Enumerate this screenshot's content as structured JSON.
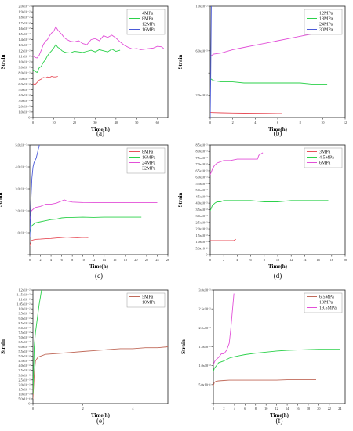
{
  "chart_data": [
    {
      "type": "line",
      "caption": "(a)",
      "xlabel": "Time(h)",
      "ylabel": "Strain",
      "xlim": [
        0,
        65
      ],
      "ylim": [
        0,
        0.02
      ],
      "xticks": [
        "0",
        "10",
        "20",
        "30",
        "40",
        "50",
        "60"
      ],
      "yticks": [
        "0",
        "1.0x10⁻³",
        "2.0x10⁻³",
        "3.0x10⁻³",
        "4.0x10⁻³",
        "5.0x10⁻³",
        "6.0x10⁻³",
        "7.0x10⁻³",
        "8.0x10⁻³",
        "9.0x10⁻³",
        "1.0x10⁻²",
        "1.1x10⁻²",
        "1.2x10⁻²",
        "1.3x10⁻²",
        "1.4x10⁻²",
        "1.5x10⁻²",
        "1.6x10⁻²",
        "1.7x10⁻²",
        "1.8x10⁻²",
        "1.9x10⁻²",
        "2.0x10⁻²"
      ],
      "legend_position": "top-right",
      "series": [
        {
          "name": "4MPa",
          "color": "#e8505b",
          "x": [
            0,
            1,
            2,
            3,
            4,
            5,
            6,
            7,
            8,
            9,
            10,
            11,
            12
          ],
          "y": [
            0.0061,
            0.0059,
            0.0063,
            0.0067,
            0.0069,
            0.0072,
            0.0071,
            0.0073,
            0.0072,
            0.0074,
            0.0073,
            0.0073,
            0.0074
          ]
        },
        {
          "name": "8MPa",
          "color": "#2bd14a",
          "x": [
            0,
            1,
            2,
            3,
            4,
            5,
            6,
            7,
            8,
            9,
            10,
            11,
            12,
            13,
            14,
            15,
            16,
            18,
            20,
            22,
            24,
            26,
            28,
            30,
            32,
            34,
            36,
            38,
            40,
            42
          ],
          "y": [
            0.0086,
            0.0083,
            0.0081,
            0.0089,
            0.0092,
            0.0099,
            0.0104,
            0.0111,
            0.0116,
            0.012,
            0.0125,
            0.0131,
            0.0126,
            0.0124,
            0.012,
            0.0118,
            0.0117,
            0.0116,
            0.0119,
            0.0118,
            0.0117,
            0.0119,
            0.0121,
            0.0118,
            0.0122,
            0.012,
            0.0118,
            0.0123,
            0.0119,
            0.0121
          ]
        },
        {
          "name": "12MPa",
          "color": "#e24fd8",
          "x": [
            0,
            1,
            2,
            3,
            4,
            5,
            6,
            7,
            8,
            9,
            10,
            11,
            12,
            13,
            14,
            15,
            16,
            18,
            20,
            22,
            24,
            26,
            28,
            30,
            32,
            34,
            36,
            38,
            40,
            42,
            44,
            46,
            48,
            50,
            52,
            54,
            56,
            58,
            60,
            62,
            63
          ],
          "y": [
            0.0112,
            0.0108,
            0.0107,
            0.0112,
            0.0121,
            0.0131,
            0.0137,
            0.014,
            0.0147,
            0.0152,
            0.0155,
            0.0163,
            0.0157,
            0.0153,
            0.0149,
            0.0144,
            0.0141,
            0.0137,
            0.0136,
            0.0138,
            0.0133,
            0.0131,
            0.014,
            0.0142,
            0.0138,
            0.0147,
            0.0144,
            0.0148,
            0.0143,
            0.0136,
            0.013,
            0.0126,
            0.0123,
            0.0124,
            0.0122,
            0.0123,
            0.0124,
            0.0125,
            0.0128,
            0.0127,
            0.0124
          ]
        },
        {
          "name": "16MPa",
          "color": "#4a5ad8",
          "x": [],
          "y": []
        }
      ]
    },
    {
      "type": "line",
      "caption": "(b)",
      "xlabel": "Time(h)",
      "ylabel": "Strain",
      "xlim": [
        0,
        12
      ],
      "ylim": [
        0,
        0.01
      ],
      "xticks": [
        "0",
        "2",
        "4",
        "6",
        "8",
        "10",
        "12"
      ],
      "yticks": [
        "",
        "2.0x10⁻³",
        "",
        "6.0x10⁻³",
        "1.0x10⁻²"
      ],
      "ytick_values": [
        0,
        0.002,
        0.004,
        0.006,
        0.01
      ],
      "legend_position": "top-right",
      "series": [
        {
          "name": "12MPa",
          "color": "#e8505b",
          "x": [
            0,
            1,
            2,
            3,
            4,
            5,
            6,
            6.4
          ],
          "y": [
            0.00045,
            0.00042,
            0.0004,
            0.00039,
            0.00038,
            0.00037,
            0.00036,
            0.00036
          ]
        },
        {
          "name": "18MPa",
          "color": "#2bd14a",
          "x": [
            0,
            0.3,
            1,
            2,
            3,
            4,
            5,
            6,
            7,
            8,
            9,
            10,
            10.4
          ],
          "y": [
            0.0035,
            0.0033,
            0.0032,
            0.0032,
            0.0031,
            0.0031,
            0.0031,
            0.0031,
            0.0031,
            0.0031,
            0.003,
            0.003,
            0.003
          ]
        },
        {
          "name": "24MPa",
          "color": "#e24fd8",
          "x": [
            0,
            0.3,
            1,
            2,
            3,
            4,
            5,
            6,
            7,
            8,
            9,
            10,
            10.6
          ],
          "y": [
            0.0055,
            0.0057,
            0.0058,
            0.0061,
            0.0063,
            0.0065,
            0.0067,
            0.0069,
            0.0071,
            0.0073,
            0.0075,
            0.0077,
            0.0078
          ]
        },
        {
          "name": "30MPa",
          "color": "#4a5ad8",
          "x": [
            0,
            0.05,
            0.1
          ],
          "y": [
            0.0,
            0.004,
            0.0101
          ]
        }
      ]
    },
    {
      "type": "line",
      "caption": "(c)",
      "xlabel": "Time(h)",
      "ylabel": "Strain",
      "xlim": [
        0,
        26
      ],
      "ylim": [
        0,
        0.005
      ],
      "xticks": [
        "0",
        "2",
        "4",
        "6",
        "8",
        "10",
        "12",
        "14",
        "16",
        "18",
        "20",
        "22",
        "24",
        "26"
      ],
      "yticks": [
        "",
        "1.0x10⁻³",
        "2.0x10⁻³",
        "3.0x10⁻³",
        "4.0x10⁻³",
        "5.0x10⁻³"
      ],
      "legend_position": "top-right",
      "series": [
        {
          "name": "8MPa",
          "color": "#e8505b",
          "x": [
            0,
            0.3,
            1,
            2,
            3,
            4,
            5,
            6,
            7,
            8,
            9,
            10,
            11
          ],
          "y": [
            0.0004,
            0.00065,
            0.0007,
            0.00071,
            0.00073,
            0.00074,
            0.00076,
            0.00078,
            0.0008,
            0.00078,
            0.00077,
            0.00079,
            0.00078
          ]
        },
        {
          "name": "16MPa",
          "color": "#2bd14a",
          "x": [
            0,
            0.3,
            1,
            2,
            3,
            4,
            5,
            6,
            7,
            8,
            10,
            12,
            14,
            16,
            18,
            20,
            21
          ],
          "y": [
            0.001,
            0.0013,
            0.00145,
            0.0015,
            0.00155,
            0.0016,
            0.00162,
            0.00168,
            0.0017,
            0.0017,
            0.00171,
            0.0017,
            0.00171,
            0.00171,
            0.00171,
            0.00171,
            0.00171
          ]
        },
        {
          "name": "24MPa",
          "color": "#e24fd8",
          "x": [
            0,
            0.3,
            1,
            2,
            3,
            4,
            5,
            6,
            6.5,
            7,
            8,
            10,
            12,
            14,
            16,
            18,
            20,
            22,
            24
          ],
          "y": [
            0.0016,
            0.002,
            0.00215,
            0.0022,
            0.0023,
            0.0023,
            0.00235,
            0.00245,
            0.0025,
            0.00245,
            0.0024,
            0.00238,
            0.00237,
            0.00238,
            0.00237,
            0.00238,
            0.00238,
            0.00238,
            0.00238
          ]
        },
        {
          "name": "32MPa",
          "color": "#4a5ad8",
          "x": [
            0,
            0.2,
            0.4,
            0.6,
            0.8,
            1.0,
            1.2,
            1.4,
            1.6,
            1.8
          ],
          "y": [
            0.0008,
            0.0025,
            0.0035,
            0.004,
            0.0042,
            0.0043,
            0.0044,
            0.0046,
            0.0048,
            0.005
          ]
        }
      ]
    },
    {
      "type": "line",
      "caption": "(d)",
      "xlabel": "Time(h)",
      "ylabel": "Strain",
      "xlim": [
        0,
        20
      ],
      "ylim": [
        0,
        0.0085
      ],
      "xticks": [
        "0",
        "2",
        "4",
        "6",
        "8",
        "10",
        "12",
        "14",
        "16",
        "18",
        "20"
      ],
      "yticks": [
        "0",
        "5.0x10⁻⁴",
        "1.0x10⁻³",
        "1.5x10⁻³",
        "2.0x10⁻³",
        "2.5x10⁻³",
        "3.0x10⁻³",
        "3.5x10⁻³",
        "4.0x10⁻³",
        "4.5x10⁻³",
        "5.0x10⁻³",
        "5.5x10⁻³",
        "6.0x10⁻³",
        "6.5x10⁻³",
        "7.0x10⁻³",
        "7.5x10⁻³",
        "8.0x10⁻³",
        "8.5x10⁻³"
      ],
      "legend_position": "top-right",
      "series": [
        {
          "name": "3MPa",
          "color": "#e8505b",
          "x": [
            0,
            1,
            2,
            3,
            3.5,
            3.8
          ],
          "y": [
            0.0011,
            0.0011,
            0.0011,
            0.0011,
            0.0011,
            0.0012
          ]
        },
        {
          "name": "4.5MPa",
          "color": "#2bd14a",
          "x": [
            0,
            0.3,
            0.7,
            1,
            1.5,
            2,
            3,
            4,
            5,
            6,
            8,
            10,
            12,
            14,
            16,
            17.5
          ],
          "y": [
            0.0034,
            0.0038,
            0.004,
            0.0041,
            0.0041,
            0.0042,
            0.0042,
            0.0042,
            0.0042,
            0.0042,
            0.0041,
            0.0041,
            0.0042,
            0.0042,
            0.0042,
            0.0042
          ]
        },
        {
          "name": "6MPa",
          "color": "#e24fd8",
          "x": [
            0,
            0.3,
            0.6,
            1,
            1.5,
            2,
            3,
            4,
            5,
            6,
            7,
            7.2,
            7.5,
            7.8
          ],
          "y": [
            0.0062,
            0.0066,
            0.0069,
            0.0071,
            0.0072,
            0.0073,
            0.0073,
            0.0074,
            0.0074,
            0.0074,
            0.0074,
            0.0077,
            0.0078,
            0.0079
          ]
        }
      ]
    },
    {
      "type": "line",
      "caption": "(e)",
      "xlabel": "Time(h)",
      "ylabel": "Strain",
      "xlim": [
        0,
        5.4
      ],
      "ylim": [
        0,
        0.012
      ],
      "xticks": [
        "0",
        "2",
        "4"
      ],
      "xtick_values": [
        0,
        2,
        4
      ],
      "yticks": [
        "0",
        "5.0x10⁻⁴",
        "1.0x10⁻³",
        "1.5x10⁻³",
        "2.0x10⁻³",
        "2.5x10⁻³",
        "3.0x10⁻³",
        "3.5x10⁻³",
        "4.0x10⁻³",
        "4.5x10⁻³",
        "5.0x10⁻³",
        "5.5x10⁻³",
        "6.0x10⁻³",
        "6.5x10⁻³",
        "7.0x10⁻³",
        "7.5x10⁻³",
        "8.0x10⁻³",
        "8.5x10⁻³",
        "9.0x10⁻³",
        "9.5x10⁻³",
        "1.0x10⁻²",
        "1.05x10⁻²",
        "1.1x10⁻²",
        "1.15x10⁻²",
        "1.2x10⁻²"
      ],
      "legend_position": "top-right",
      "series": [
        {
          "name": "5MPa",
          "color": "#c06a5a",
          "x": [
            0,
            0.05,
            0.1,
            0.2,
            0.3,
            0.5,
            1,
            1.5,
            2,
            2.5,
            3,
            3.5,
            4,
            4.5,
            5,
            5.4
          ],
          "y": [
            0.0005,
            0.003,
            0.0045,
            0.0049,
            0.005,
            0.0052,
            0.0053,
            0.0054,
            0.0055,
            0.0056,
            0.0057,
            0.0058,
            0.0058,
            0.0059,
            0.0059,
            0.006
          ]
        },
        {
          "name": "10MPa",
          "color": "#2bd14a",
          "x": [
            0,
            0.05,
            0.1,
            0.15,
            0.2,
            0.25,
            0.3,
            0.35
          ],
          "y": [
            0.001,
            0.006,
            0.0075,
            0.0085,
            0.0095,
            0.0105,
            0.0113,
            0.0121
          ]
        }
      ]
    },
    {
      "type": "line",
      "caption": "(f)",
      "xlabel": "Time(h)",
      "ylabel": "Strain",
      "xlim": [
        0,
        25
      ],
      "ylim": [
        0,
        0.0032
      ],
      "xticks": [
        "0",
        "2",
        "4",
        "6",
        "8",
        "10",
        "12",
        "14",
        "16",
        "18",
        "20",
        "22",
        "24"
      ],
      "yticks": [
        "",
        "5.0x10⁻⁴",
        "1.0x10⁻³",
        "1.5x10⁻³",
        "2.0x10⁻³",
        "2.5x10⁻³",
        "3.0x10⁻³"
      ],
      "legend_position": "top-right",
      "series": [
        {
          "name": "6.5MPa",
          "color": "#c06a5a",
          "x": [
            0,
            0.2,
            0.5,
            1,
            2,
            3,
            4,
            6,
            8,
            10,
            12,
            14,
            16,
            18,
            19.5
          ],
          "y": [
            0.0005,
            0.0006,
            0.00063,
            0.00064,
            0.00065,
            0.00066,
            0.00066,
            0.00066,
            0.00066,
            0.00066,
            0.00066,
            0.00067,
            0.00067,
            0.00067,
            0.00067
          ]
        },
        {
          "name": "13MPa",
          "color": "#2bd14a",
          "x": [
            0,
            0.2,
            0.5,
            1,
            2,
            3,
            4,
            5,
            6,
            8,
            10,
            12,
            14,
            16,
            18,
            20,
            22,
            24
          ],
          "y": [
            0.0009,
            0.001,
            0.00105,
            0.00115,
            0.0012,
            0.00128,
            0.00132,
            0.00135,
            0.00138,
            0.00142,
            0.00145,
            0.00148,
            0.0015,
            0.00151,
            0.00152,
            0.00153,
            0.00153,
            0.00153
          ]
        },
        {
          "name": "19.5MPa",
          "color": "#e24fd8",
          "x": [
            0,
            0.3,
            0.6,
            1,
            1.5,
            2,
            2.5,
            3,
            3.3,
            3.6,
            3.9
          ],
          "y": [
            0.0011,
            0.0012,
            0.00125,
            0.0013,
            0.0014,
            0.0014,
            0.0015,
            0.0017,
            0.0021,
            0.0026,
            0.0031
          ]
        }
      ]
    }
  ]
}
